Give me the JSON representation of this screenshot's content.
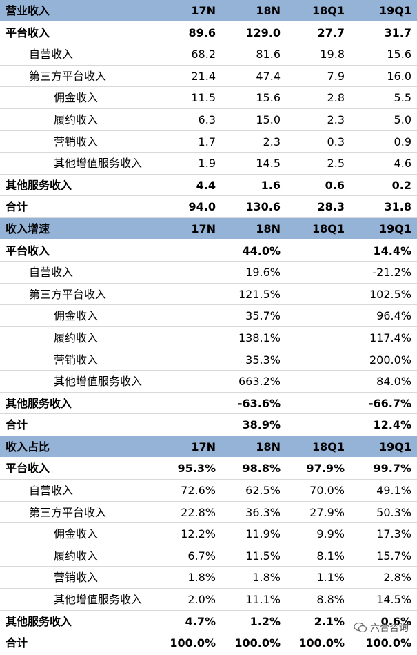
{
  "sections": [
    {
      "title": "营业收入",
      "columns": [
        "17N",
        "18N",
        "18Q1",
        "19Q1"
      ],
      "rows": [
        {
          "label": "平台收入",
          "level": 0,
          "cells": [
            "89.6",
            "129.0",
            "27.7",
            "31.7"
          ]
        },
        {
          "label": "自营收入",
          "level": 1,
          "cells": [
            "68.2",
            "81.6",
            "19.8",
            "15.6"
          ]
        },
        {
          "label": "第三方平台收入",
          "level": 1,
          "cells": [
            "21.4",
            "47.4",
            "7.9",
            "16.0"
          ]
        },
        {
          "label": "佣金收入",
          "level": 2,
          "cells": [
            "11.5",
            "15.6",
            "2.8",
            "5.5"
          ]
        },
        {
          "label": "履约收入",
          "level": 2,
          "cells": [
            "6.3",
            "15.0",
            "2.3",
            "5.0"
          ]
        },
        {
          "label": "营销收入",
          "level": 2,
          "cells": [
            "1.7",
            "2.3",
            "0.3",
            "0.9"
          ]
        },
        {
          "label": "其他增值服务收入",
          "level": 2,
          "cells": [
            "1.9",
            "14.5",
            "2.5",
            "4.6"
          ]
        },
        {
          "label": "其他服务收入",
          "level": 0,
          "cells": [
            "4.4",
            "1.6",
            "0.6",
            "0.2"
          ]
        },
        {
          "label": "合计",
          "level": 0,
          "cells": [
            "94.0",
            "130.6",
            "28.3",
            "31.8"
          ]
        }
      ]
    },
    {
      "title": "收入增速",
      "columns": [
        "17N",
        "18N",
        "18Q1",
        "19Q1"
      ],
      "rows": [
        {
          "label": "平台收入",
          "level": 0,
          "cells": [
            null,
            "44.0%",
            null,
            "14.4%"
          ]
        },
        {
          "label": "自营收入",
          "level": 1,
          "cells": [
            null,
            "19.6%",
            null,
            "-21.2%"
          ]
        },
        {
          "label": "第三方平台收入",
          "level": 1,
          "cells": [
            null,
            "121.5%",
            null,
            "102.5%"
          ]
        },
        {
          "label": "佣金收入",
          "level": 2,
          "cells": [
            null,
            "35.7%",
            null,
            "96.4%"
          ]
        },
        {
          "label": "履约收入",
          "level": 2,
          "cells": [
            null,
            "138.1%",
            null,
            "117.4%"
          ]
        },
        {
          "label": "营销收入",
          "level": 2,
          "cells": [
            null,
            "35.3%",
            null,
            "200.0%"
          ]
        },
        {
          "label": "其他增值服务收入",
          "level": 2,
          "cells": [
            null,
            "663.2%",
            null,
            "84.0%"
          ]
        },
        {
          "label": "其他服务收入",
          "level": 0,
          "cells": [
            null,
            "-63.6%",
            null,
            "-66.7%"
          ]
        },
        {
          "label": "合计",
          "level": 0,
          "cells": [
            null,
            "38.9%",
            null,
            "12.4%"
          ]
        }
      ]
    },
    {
      "title": "收入占比",
      "columns": [
        "17N",
        "18N",
        "18Q1",
        "19Q1"
      ],
      "rows": [
        {
          "label": "平台收入",
          "level": 0,
          "cells": [
            "95.3%",
            "98.8%",
            "97.9%",
            "99.7%"
          ]
        },
        {
          "label": "自营收入",
          "level": 1,
          "cells": [
            "72.6%",
            "62.5%",
            "70.0%",
            "49.1%"
          ]
        },
        {
          "label": "第三方平台收入",
          "level": 1,
          "cells": [
            "22.8%",
            "36.3%",
            "27.9%",
            "50.3%"
          ]
        },
        {
          "label": "佣金收入",
          "level": 2,
          "cells": [
            "12.2%",
            "11.9%",
            "9.9%",
            "17.3%"
          ]
        },
        {
          "label": "履约收入",
          "level": 2,
          "cells": [
            "6.7%",
            "11.5%",
            "8.1%",
            "15.7%"
          ]
        },
        {
          "label": "营销收入",
          "level": 2,
          "cells": [
            "1.8%",
            "1.8%",
            "1.1%",
            "2.8%"
          ]
        },
        {
          "label": "其他增值服务收入",
          "level": 2,
          "cells": [
            "2.0%",
            "11.1%",
            "8.8%",
            "14.5%"
          ]
        },
        {
          "label": "其他服务收入",
          "level": 0,
          "cells": [
            "4.7%",
            "1.2%",
            "2.1%",
            "0.6%"
          ]
        },
        {
          "label": "合计",
          "level": 0,
          "cells": [
            "100.0%",
            "100.0%",
            "100.0%",
            "100.0%"
          ]
        }
      ]
    }
  ],
  "watermark": "六合咨询"
}
